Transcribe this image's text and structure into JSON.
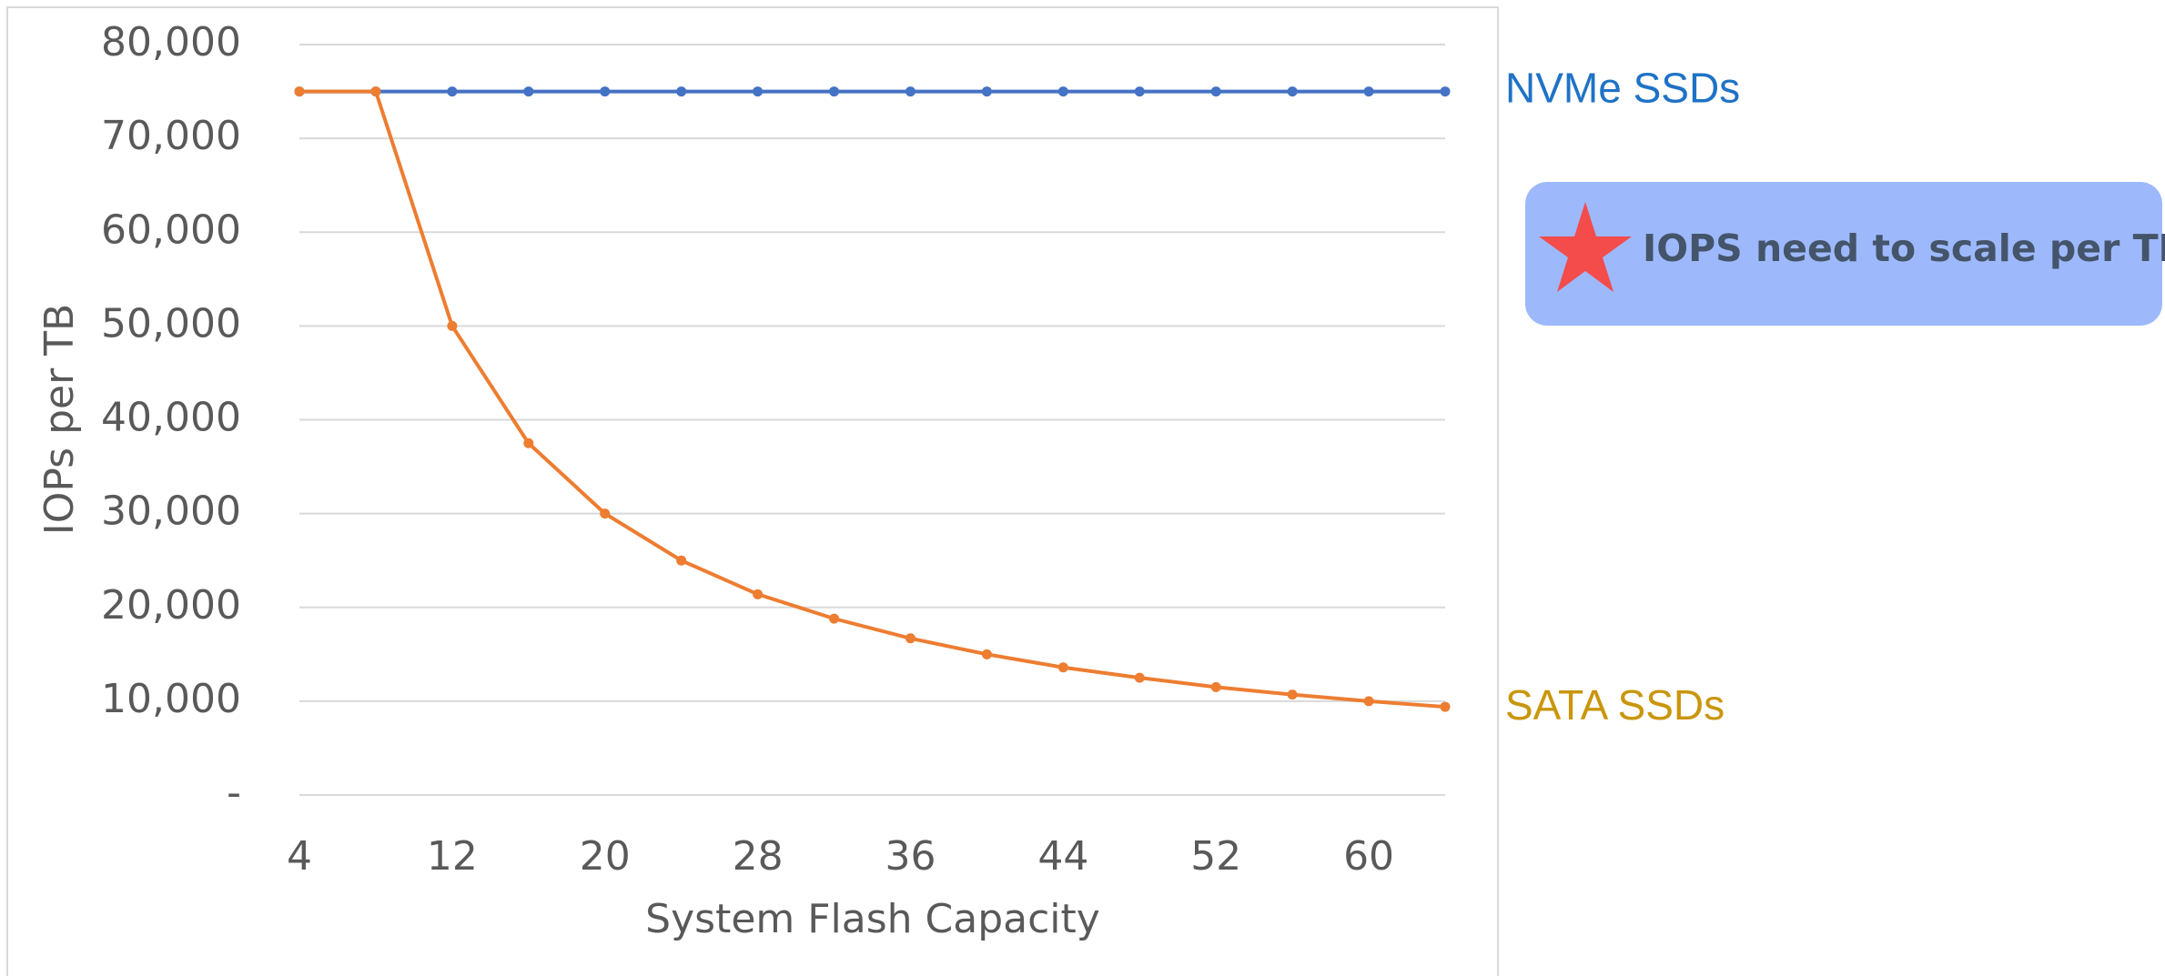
{
  "chart_data": {
    "type": "line",
    "x": [
      4,
      8,
      12,
      16,
      20,
      24,
      28,
      32,
      36,
      40,
      44,
      48,
      52,
      56,
      60,
      64
    ],
    "series": [
      {
        "name": "NVMe SSDs",
        "color": "#4472c4",
        "label_color": "#1f72c6",
        "values": [
          75000,
          75000,
          75000,
          75000,
          75000,
          75000,
          75000,
          75000,
          75000,
          75000,
          75000,
          75000,
          75000,
          75000,
          75000,
          75000
        ]
      },
      {
        "name": "SATA SSDs",
        "color": "#ed7d31",
        "label_color": "#c9960c",
        "values": [
          75000,
          75000,
          50000,
          37500,
          30000,
          25000,
          21400,
          18800,
          16700,
          15000,
          13600,
          12500,
          11500,
          10700,
          10000,
          9400
        ]
      }
    ],
    "xlim": [
      4,
      64
    ],
    "xticks": [
      4,
      12,
      20,
      28,
      36,
      44,
      52,
      60
    ],
    "ylim": [
      0,
      80000
    ],
    "yticks": [
      {
        "value": 0,
        "label": "-"
      },
      {
        "value": 10000,
        "label": "10,000"
      },
      {
        "value": 20000,
        "label": "20,000"
      },
      {
        "value": 30000,
        "label": "30,000"
      },
      {
        "value": 40000,
        "label": "40,000"
      },
      {
        "value": 50000,
        "label": "50,000"
      },
      {
        "value": 60000,
        "label": "60,000"
      },
      {
        "value": 70000,
        "label": "70,000"
      },
      {
        "value": 80000,
        "label": "80,000"
      }
    ],
    "xlabel": "System Flash Capacity",
    "ylabel": "IOPs per TB",
    "grid": true,
    "annotation": "IOPS need to scale per TB"
  }
}
